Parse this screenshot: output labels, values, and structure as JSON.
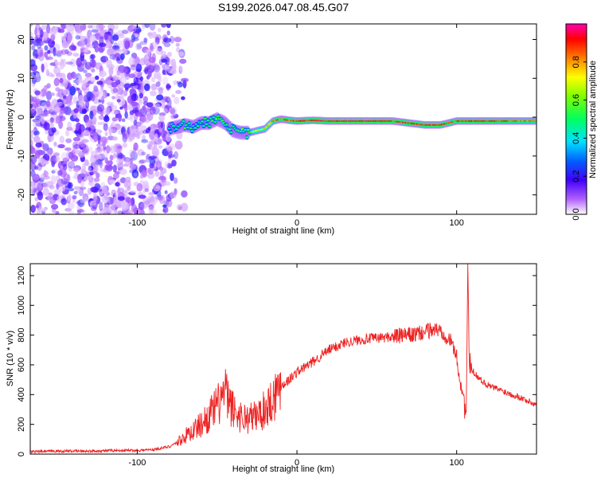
{
  "title": "S199.2026.047.08.45.G07",
  "chart_data": [
    {
      "type": "heatmap",
      "xlabel": "Height of straight line (km)",
      "ylabel": "Frequency (Hz)",
      "xlim": [
        -167,
        150
      ],
      "ylim": [
        -25,
        24
      ],
      "xticks": [
        -100,
        0,
        100
      ],
      "xtick_labels": [
        "-100",
        "0",
        "100"
      ],
      "yticks": [
        -20,
        -10,
        0,
        10,
        20
      ],
      "ytick_labels": [
        "-20",
        "-10",
        "0",
        "10",
        "20"
      ],
      "colorbar": {
        "label": "Normalized spectral amplitude",
        "range": [
          0,
          1
        ],
        "ticks": [
          0.0,
          0.2,
          0.4,
          0.6,
          0.8
        ],
        "tick_labels": [
          "0.0",
          "0.2",
          "0.4",
          "0.6",
          "0.8"
        ],
        "colormap": [
          "#ffffff",
          "#a040ff",
          "#0000ff",
          "#00ffff",
          "#00ff00",
          "#ffff00",
          "#ff8000",
          "#ff0000",
          "#ff00a0"
        ]
      },
      "ridge": {
        "x": [
          -80,
          -75,
          -70,
          -65,
          -60,
          -55,
          -50,
          -45,
          -40,
          -35,
          -30,
          -25,
          -20,
          -15,
          -10,
          -5,
          0,
          10,
          20,
          30,
          40,
          50,
          60,
          70,
          80,
          90,
          100,
          110,
          120,
          130,
          140,
          150
        ],
        "freq": [
          -3,
          -2.5,
          -2,
          -2.5,
          -1.5,
          -1.5,
          -0.5,
          -1.5,
          -3.5,
          -4,
          -4,
          -3.5,
          -3,
          -1,
          -0.5,
          -0.8,
          -1,
          -0.8,
          -1,
          -1,
          -1,
          -1,
          -1,
          -1.5,
          -2,
          -2,
          -1,
          -1,
          -1,
          -1,
          -1,
          -1
        ],
        "amplitude": [
          0.4,
          0.45,
          0.5,
          0.45,
          0.45,
          0.5,
          0.55,
          0.5,
          0.5,
          0.55,
          0.6,
          0.7,
          0.75,
          0.8,
          0.85,
          0.85,
          0.9,
          0.9,
          0.92,
          0.95,
          0.95,
          0.95,
          0.9,
          0.88,
          0.9,
          0.92,
          0.85,
          0.9,
          0.9,
          0.88,
          0.85,
          0.85
        ]
      }
    },
    {
      "type": "line",
      "xlabel": "Height of straight line (km)",
      "ylabel": "SNR (10 * v/v)",
      "xlim": [
        -167,
        150
      ],
      "ylim": [
        0,
        1280
      ],
      "xticks": [
        -100,
        0,
        100
      ],
      "xtick_labels": [
        "-100",
        "0",
        "100"
      ],
      "yticks": [
        0,
        200,
        400,
        600,
        800,
        1000,
        1200
      ],
      "ytick_labels": [
        "0",
        "200",
        "400",
        "600",
        "800",
        "1000",
        "1200"
      ],
      "color": "#ee2222",
      "series": [
        {
          "name": "SNR",
          "x": [
            -167,
            -150,
            -130,
            -110,
            -100,
            -90,
            -80,
            -75,
            -70,
            -65,
            -60,
            -55,
            -50,
            -47,
            -45,
            -43,
            -40,
            -35,
            -30,
            -25,
            -20,
            -15,
            -10,
            -5,
            0,
            10,
            20,
            30,
            40,
            50,
            60,
            65,
            70,
            75,
            80,
            85,
            90,
            95,
            98,
            100,
            102,
            104,
            106,
            107,
            108,
            110,
            115,
            120,
            130,
            140,
            150
          ],
          "y": [
            15,
            20,
            20,
            25,
            25,
            30,
            50,
            80,
            120,
            160,
            200,
            260,
            320,
            380,
            420,
            350,
            300,
            250,
            240,
            260,
            300,
            380,
            460,
            500,
            550,
            620,
            700,
            750,
            770,
            780,
            790,
            795,
            800,
            805,
            820,
            840,
            830,
            780,
            720,
            650,
            500,
            400,
            250,
            1280,
            600,
            560,
            500,
            460,
            420,
            380,
            330
          ]
        }
      ]
    }
  ]
}
